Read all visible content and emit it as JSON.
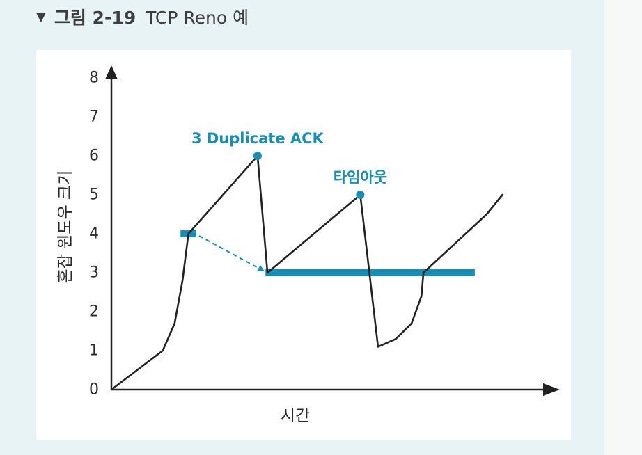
{
  "figure": {
    "marker": "▼",
    "label": "그림 2-19",
    "title": "TCP Reno 예"
  },
  "colors": {
    "page_background": "#e8f3f5",
    "card_background": "#ffffff",
    "line": "#222222",
    "accent": "#1a8db4"
  },
  "chart_data": {
    "type": "line",
    "title": "TCP Reno 예",
    "xlabel": "시간",
    "ylabel": "혼잡 윈도우 크기",
    "ylim": [
      0,
      8
    ],
    "xlim": [
      0,
      11
    ],
    "grid": false,
    "yticks": [
      "0",
      "1",
      "2",
      "3",
      "4",
      "5",
      "6",
      "7",
      "8"
    ],
    "series": [
      {
        "name": "congestion-window",
        "points": [
          {
            "x": 0.0,
            "y": 0.0
          },
          {
            "x": 1.3,
            "y": 1.0
          },
          {
            "x": 1.6,
            "y": 1.7
          },
          {
            "x": 1.8,
            "y": 2.8
          },
          {
            "x": 1.95,
            "y": 4.0
          },
          {
            "x": 3.7,
            "y": 6.0
          },
          {
            "x": 3.95,
            "y": 3.0
          },
          {
            "x": 6.3,
            "y": 5.0
          },
          {
            "x": 6.75,
            "y": 1.1
          },
          {
            "x": 7.2,
            "y": 1.3
          },
          {
            "x": 7.6,
            "y": 1.7
          },
          {
            "x": 7.85,
            "y": 2.4
          },
          {
            "x": 7.9,
            "y": 3.0
          },
          {
            "x": 9.5,
            "y": 4.5
          },
          {
            "x": 9.9,
            "y": 5.0
          }
        ]
      }
    ],
    "thresholds": [
      {
        "name": "ssthresh-initial",
        "x_start": 1.75,
        "x_end": 2.15,
        "y": 4.0
      },
      {
        "name": "ssthresh-after",
        "x_start": 3.9,
        "x_end": 9.2,
        "y": 3.0
      }
    ],
    "transition_arrow": {
      "from": {
        "x": 2.15,
        "y": 4.0
      },
      "to": {
        "x": 3.85,
        "y": 3.05
      }
    },
    "annotations": [
      {
        "text": "3 Duplicate ACK",
        "x": 3.7,
        "y": 6.0
      },
      {
        "text": "타임아웃",
        "x": 6.3,
        "y": 5.0
      }
    ]
  }
}
